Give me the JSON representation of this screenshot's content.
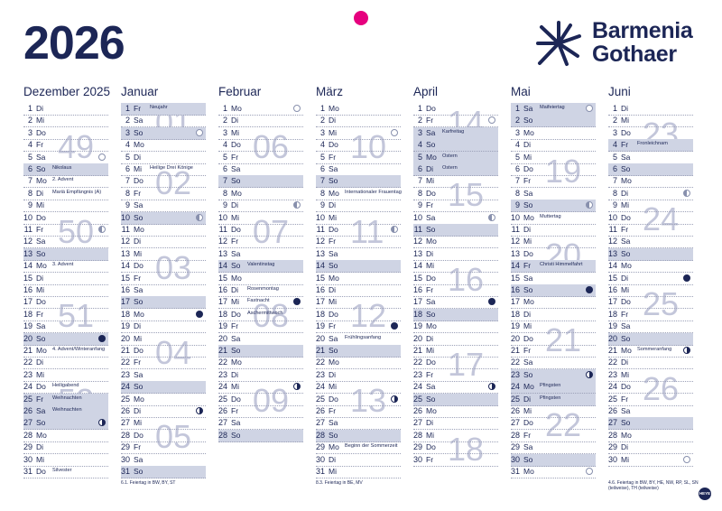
{
  "year": "2026",
  "brand": {
    "line1": "Barmenia",
    "line2": "Gothaer",
    "icon": "starburst-logo-icon"
  },
  "publisher_mark": "HEYE",
  "months": [
    {
      "name": "Dezember 2025",
      "start_wd": 1,
      "days": 31,
      "events": {
        "6": "Nikolaus",
        "7": "2. Advent",
        "8": "Mariä Empfängnis (A)",
        "14": "3. Advent",
        "21": "4. Advent/Winteranfang",
        "24": "Heiligabend",
        "25": "Weihnachten",
        "26": "Weihnachten",
        "31": "Silvester"
      },
      "holidays": [
        25,
        26
      ],
      "moons": {
        "5": "new",
        "11": "last",
        "20": "full",
        "27": "first"
      },
      "weeks": [
        {
          "n": "49",
          "at": 3
        },
        {
          "n": "50",
          "at": 10
        },
        {
          "n": "51",
          "at": 17
        },
        {
          "n": "52",
          "at": 24
        }
      ],
      "note": ""
    },
    {
      "name": "Januar",
      "start_wd": 4,
      "days": 31,
      "events": {
        "1": "Neujahr",
        "6": "Heilige Drei Könige"
      },
      "holidays": [
        1
      ],
      "moons": {
        "3": "new",
        "10": "last",
        "18": "full",
        "26": "first"
      },
      "weeks": [
        {
          "n": "01",
          "at": 1
        },
        {
          "n": "02",
          "at": 6
        },
        {
          "n": "03",
          "at": 13
        },
        {
          "n": "04",
          "at": 20
        },
        {
          "n": "05",
          "at": 27
        }
      ],
      "note": "6.1. Feiertag in BW, BY, ST"
    },
    {
      "name": "Februar",
      "start_wd": 0,
      "days": 28,
      "events": {
        "14": "Valentinstag",
        "16": "Rosenmontag",
        "17": "Fastnacht",
        "18": "Aschermittwoch"
      },
      "holidays": [],
      "moons": {
        "1": "new",
        "9": "last",
        "17": "full",
        "24": "first"
      },
      "weeks": [
        {
          "n": "06",
          "at": 3
        },
        {
          "n": "07",
          "at": 10
        },
        {
          "n": "08",
          "at": 17
        },
        {
          "n": "09",
          "at": 24
        }
      ],
      "note": ""
    },
    {
      "name": "März",
      "start_wd": 0,
      "days": 31,
      "events": {
        "8": "Internationaler Frauentag",
        "20": "Frühlingsanfang",
        "29": "Beginn der Sommerzeit"
      },
      "holidays": [],
      "moons": {
        "3": "new",
        "11": "last",
        "19": "full",
        "25": "first"
      },
      "weeks": [
        {
          "n": "10",
          "at": 3
        },
        {
          "n": "11",
          "at": 10
        },
        {
          "n": "12",
          "at": 17
        },
        {
          "n": "13",
          "at": 24
        }
      ],
      "note": "8.3. Feiertag in BE, MV"
    },
    {
      "name": "April",
      "start_wd": 3,
      "days": 30,
      "events": {
        "3": "Karfreitag",
        "5": "Ostern",
        "6": "Ostern"
      },
      "holidays": [
        3,
        5,
        6
      ],
      "moons": {
        "2": "new",
        "10": "last",
        "17": "full",
        "24": "first"
      },
      "weeks": [
        {
          "n": "14",
          "at": 1
        },
        {
          "n": "15",
          "at": 7
        },
        {
          "n": "16",
          "at": 14
        },
        {
          "n": "17",
          "at": 21
        },
        {
          "n": "18",
          "at": 28
        }
      ],
      "note": ""
    },
    {
      "name": "Mai",
      "start_wd": 5,
      "days": 31,
      "events": {
        "1": "Maifeiertag",
        "10": "Muttertag",
        "14": "Christi Himmelfahrt",
        "24": "Pfingsten",
        "25": "Pfingsten"
      },
      "holidays": [
        1,
        14,
        24,
        25
      ],
      "moons": {
        "1": "new",
        "9": "last",
        "16": "full",
        "23": "first",
        "31": "new"
      },
      "weeks": [
        {
          "n": "19",
          "at": 5
        },
        {
          "n": "20",
          "at": 12
        },
        {
          "n": "21",
          "at": 19
        },
        {
          "n": "22",
          "at": 26
        }
      ],
      "note": ""
    },
    {
      "name": "Juni",
      "start_wd": 1,
      "days": 30,
      "events": {
        "4": "Fronleichnam",
        "21": "Sommeranfang"
      },
      "holidays": [
        4
      ],
      "moons": {
        "8": "last",
        "15": "full",
        "21": "first",
        "30": "new"
      },
      "weeks": [
        {
          "n": "23",
          "at": 2
        },
        {
          "n": "24",
          "at": 9
        },
        {
          "n": "25",
          "at": 16
        },
        {
          "n": "26",
          "at": 23
        }
      ],
      "note": "4.6. Feiertag in BW, BY, HE, NW, RP, SL, SN (teilweise), TH (teilweise)"
    }
  ]
}
